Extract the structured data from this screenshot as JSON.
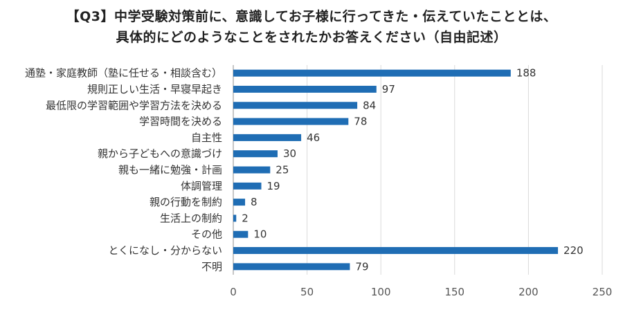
{
  "chart_data": {
    "type": "bar",
    "orientation": "horizontal",
    "title": "【Q3】中学受験対策前に、意識してお子様に行ってきた・伝えていたこととは、",
    "subtitle": "具体的にどのようなことをされたかお答えください（自由記述）",
    "categories": [
      "通塾・家庭教師（塾に任せる・相談含む）",
      "規則正しい生活・早寝早起き",
      "最低限の学習範囲や学習方法を決める",
      "学習時間を決める",
      "自主性",
      "親から子どもへの意識づけ",
      "親も一緒に勉強・計画",
      "体調管理",
      "親の行動を制約",
      "生活上の制約",
      "その他",
      "とくになし・分からない",
      "不明"
    ],
    "values": [
      188,
      97,
      84,
      78,
      46,
      30,
      25,
      19,
      8,
      2,
      10,
      220,
      79
    ],
    "xlim": [
      0,
      250
    ],
    "xticks": [
      "0",
      "50",
      "100",
      "150",
      "200",
      "250"
    ],
    "grid": true,
    "bar_color": "#1f6db4",
    "grid_color": "#d9d9d9",
    "axis_color": "#8c8c8c"
  }
}
